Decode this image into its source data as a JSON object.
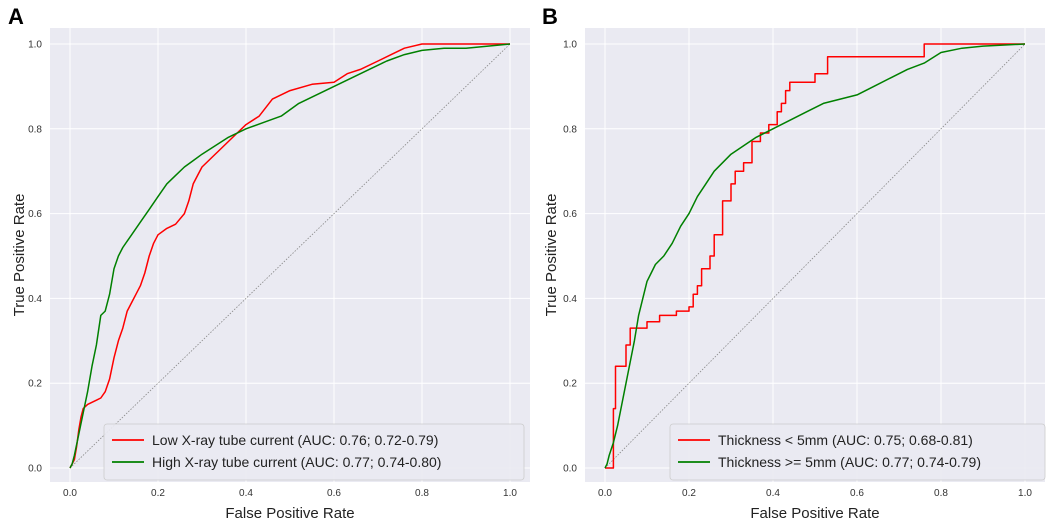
{
  "chart_data": [
    {
      "panel_label": "A",
      "type": "line",
      "xlabel": "False Positive Rate",
      "ylabel": "True Positive Rate",
      "xlim": [
        0,
        1
      ],
      "ylim": [
        0,
        1
      ],
      "xticks": [
        "0.0",
        "0.2",
        "0.4",
        "0.6",
        "0.8",
        "1.0"
      ],
      "yticks": [
        "0.0",
        "0.2",
        "0.4",
        "0.6",
        "0.8",
        "1.0"
      ],
      "grid": true,
      "legend_position": "lower-right",
      "colors": {
        "chance": "#888888",
        "background": "#eaeaf2"
      },
      "series": [
        {
          "name": "Low X-ray tube current (AUC: 0.76; 0.72-0.79)",
          "color": "#ff0000",
          "points": [
            [
              0,
              0
            ],
            [
              0.01,
              0.02
            ],
            [
              0.015,
              0.05
            ],
            [
              0.02,
              0.09
            ],
            [
              0.025,
              0.12
            ],
            [
              0.03,
              0.14
            ],
            [
              0.04,
              0.15
            ],
            [
              0.05,
              0.155
            ],
            [
              0.06,
              0.16
            ],
            [
              0.07,
              0.165
            ],
            [
              0.08,
              0.18
            ],
            [
              0.09,
              0.21
            ],
            [
              0.1,
              0.26
            ],
            [
              0.11,
              0.3
            ],
            [
              0.12,
              0.33
            ],
            [
              0.13,
              0.37
            ],
            [
              0.14,
              0.39
            ],
            [
              0.15,
              0.41
            ],
            [
              0.16,
              0.43
            ],
            [
              0.17,
              0.46
            ],
            [
              0.18,
              0.5
            ],
            [
              0.19,
              0.53
            ],
            [
              0.2,
              0.55
            ],
            [
              0.22,
              0.565
            ],
            [
              0.24,
              0.575
            ],
            [
              0.26,
              0.6
            ],
            [
              0.27,
              0.63
            ],
            [
              0.28,
              0.67
            ],
            [
              0.29,
              0.69
            ],
            [
              0.3,
              0.71
            ],
            [
              0.32,
              0.73
            ],
            [
              0.34,
              0.75
            ],
            [
              0.36,
              0.77
            ],
            [
              0.38,
              0.79
            ],
            [
              0.4,
              0.81
            ],
            [
              0.43,
              0.83
            ],
            [
              0.46,
              0.87
            ],
            [
              0.5,
              0.89
            ],
            [
              0.55,
              0.905
            ],
            [
              0.6,
              0.91
            ],
            [
              0.63,
              0.93
            ],
            [
              0.66,
              0.94
            ],
            [
              0.7,
              0.96
            ],
            [
              0.73,
              0.975
            ],
            [
              0.76,
              0.99
            ],
            [
              0.8,
              1.0
            ],
            [
              0.9,
              1.0
            ],
            [
              1.0,
              1.0
            ]
          ]
        },
        {
          "name": "High X-ray tube current (AUC: 0.77; 0.74-0.80)",
          "color": "#008000",
          "points": [
            [
              0,
              0
            ],
            [
              0.005,
              0.01
            ],
            [
              0.01,
              0.03
            ],
            [
              0.02,
              0.08
            ],
            [
              0.03,
              0.13
            ],
            [
              0.04,
              0.18
            ],
            [
              0.05,
              0.24
            ],
            [
              0.06,
              0.29
            ],
            [
              0.07,
              0.36
            ],
            [
              0.08,
              0.37
            ],
            [
              0.09,
              0.41
            ],
            [
              0.1,
              0.47
            ],
            [
              0.11,
              0.5
            ],
            [
              0.12,
              0.52
            ],
            [
              0.14,
              0.55
            ],
            [
              0.16,
              0.58
            ],
            [
              0.18,
              0.61
            ],
            [
              0.2,
              0.64
            ],
            [
              0.22,
              0.67
            ],
            [
              0.24,
              0.69
            ],
            [
              0.26,
              0.71
            ],
            [
              0.28,
              0.725
            ],
            [
              0.3,
              0.74
            ],
            [
              0.33,
              0.76
            ],
            [
              0.36,
              0.78
            ],
            [
              0.4,
              0.8
            ],
            [
              0.44,
              0.815
            ],
            [
              0.48,
              0.83
            ],
            [
              0.52,
              0.86
            ],
            [
              0.56,
              0.88
            ],
            [
              0.6,
              0.9
            ],
            [
              0.64,
              0.92
            ],
            [
              0.68,
              0.94
            ],
            [
              0.72,
              0.96
            ],
            [
              0.76,
              0.975
            ],
            [
              0.8,
              0.985
            ],
            [
              0.85,
              0.99
            ],
            [
              0.9,
              0.99
            ],
            [
              0.95,
              0.995
            ],
            [
              1.0,
              1.0
            ]
          ]
        }
      ]
    },
    {
      "panel_label": "B",
      "type": "line",
      "xlabel": "False Positive Rate",
      "ylabel": "True Positive Rate",
      "xlim": [
        0,
        1
      ],
      "ylim": [
        0,
        1
      ],
      "xticks": [
        "0.0",
        "0.2",
        "0.4",
        "0.6",
        "0.8",
        "1.0"
      ],
      "yticks": [
        "0.0",
        "0.2",
        "0.4",
        "0.6",
        "0.8",
        "1.0"
      ],
      "grid": true,
      "legend_position": "lower-right",
      "colors": {
        "chance": "#888888",
        "background": "#eaeaf2"
      },
      "series": [
        {
          "name": "Thickness < 5mm (AUC: 0.75; 0.68-0.81)",
          "color": "#ff0000",
          "points": [
            [
              0,
              0
            ],
            [
              0.02,
              0
            ],
            [
              0.02,
              0.14
            ],
            [
              0.025,
              0.14
            ],
            [
              0.025,
              0.24
            ],
            [
              0.05,
              0.24
            ],
            [
              0.05,
              0.29
            ],
            [
              0.06,
              0.29
            ],
            [
              0.06,
              0.33
            ],
            [
              0.1,
              0.33
            ],
            [
              0.1,
              0.345
            ],
            [
              0.13,
              0.345
            ],
            [
              0.13,
              0.36
            ],
            [
              0.17,
              0.36
            ],
            [
              0.17,
              0.37
            ],
            [
              0.2,
              0.37
            ],
            [
              0.2,
              0.38
            ],
            [
              0.21,
              0.38
            ],
            [
              0.21,
              0.41
            ],
            [
              0.22,
              0.41
            ],
            [
              0.22,
              0.43
            ],
            [
              0.23,
              0.43
            ],
            [
              0.23,
              0.47
            ],
            [
              0.25,
              0.47
            ],
            [
              0.25,
              0.5
            ],
            [
              0.26,
              0.5
            ],
            [
              0.26,
              0.55
            ],
            [
              0.28,
              0.55
            ],
            [
              0.28,
              0.63
            ],
            [
              0.3,
              0.63
            ],
            [
              0.3,
              0.67
            ],
            [
              0.31,
              0.67
            ],
            [
              0.31,
              0.7
            ],
            [
              0.33,
              0.7
            ],
            [
              0.33,
              0.72
            ],
            [
              0.35,
              0.72
            ],
            [
              0.35,
              0.77
            ],
            [
              0.37,
              0.77
            ],
            [
              0.37,
              0.79
            ],
            [
              0.39,
              0.79
            ],
            [
              0.39,
              0.81
            ],
            [
              0.41,
              0.81
            ],
            [
              0.41,
              0.84
            ],
            [
              0.42,
              0.84
            ],
            [
              0.42,
              0.86
            ],
            [
              0.43,
              0.86
            ],
            [
              0.43,
              0.89
            ],
            [
              0.44,
              0.89
            ],
            [
              0.44,
              0.91
            ],
            [
              0.5,
              0.91
            ],
            [
              0.5,
              0.93
            ],
            [
              0.53,
              0.93
            ],
            [
              0.53,
              0.97
            ],
            [
              0.76,
              0.97
            ],
            [
              0.76,
              1.0
            ],
            [
              1.0,
              1.0
            ]
          ]
        },
        {
          "name": "Thickness >= 5mm (AUC: 0.77; 0.74-0.79)",
          "color": "#008000",
          "points": [
            [
              0,
              0
            ],
            [
              0.005,
              0.01
            ],
            [
              0.01,
              0.03
            ],
            [
              0.02,
              0.06
            ],
            [
              0.03,
              0.1
            ],
            [
              0.04,
              0.15
            ],
            [
              0.05,
              0.2
            ],
            [
              0.06,
              0.25
            ],
            [
              0.07,
              0.3
            ],
            [
              0.08,
              0.36
            ],
            [
              0.09,
              0.4
            ],
            [
              0.1,
              0.44
            ],
            [
              0.11,
              0.46
            ],
            [
              0.12,
              0.48
            ],
            [
              0.14,
              0.5
            ],
            [
              0.16,
              0.53
            ],
            [
              0.18,
              0.57
            ],
            [
              0.2,
              0.6
            ],
            [
              0.22,
              0.64
            ],
            [
              0.24,
              0.67
            ],
            [
              0.26,
              0.7
            ],
            [
              0.28,
              0.72
            ],
            [
              0.3,
              0.74
            ],
            [
              0.33,
              0.76
            ],
            [
              0.36,
              0.78
            ],
            [
              0.4,
              0.8
            ],
            [
              0.44,
              0.82
            ],
            [
              0.48,
              0.84
            ],
            [
              0.52,
              0.86
            ],
            [
              0.56,
              0.87
            ],
            [
              0.6,
              0.88
            ],
            [
              0.64,
              0.9
            ],
            [
              0.68,
              0.92
            ],
            [
              0.72,
              0.94
            ],
            [
              0.76,
              0.955
            ],
            [
              0.8,
              0.98
            ],
            [
              0.85,
              0.99
            ],
            [
              0.9,
              0.995
            ],
            [
              1.0,
              1.0
            ]
          ]
        }
      ]
    }
  ]
}
